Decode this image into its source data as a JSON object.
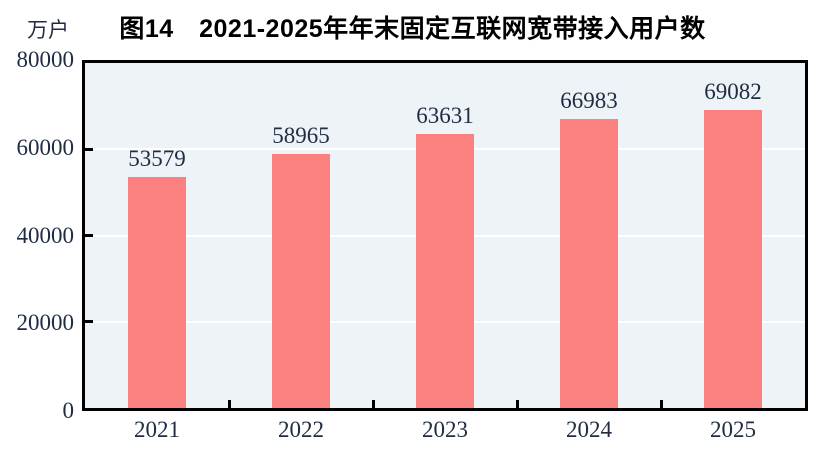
{
  "header": {
    "unit_label": "万户",
    "title": "图14　2021-2025年年末固定互联网宽带接入用户数"
  },
  "chart_data": {
    "type": "bar",
    "title": "图14 2021-2025年年末固定互联网宽带接入用户数",
    "unit": "万户",
    "categories": [
      "2021",
      "2022",
      "2023",
      "2024",
      "2025"
    ],
    "values": [
      53579,
      58965,
      63631,
      66983,
      69082
    ],
    "xlabel": "",
    "ylabel": "万户",
    "ylim": [
      0,
      80000
    ],
    "yticks": [
      0,
      20000,
      40000,
      60000,
      80000
    ],
    "grid": true,
    "legend": "none",
    "bar_color": "#fb8080",
    "plot_bg": "#edf3f6",
    "grid_color": "#ffffff",
    "axis_color": "#000000",
    "label_color": "#1f2c42"
  }
}
